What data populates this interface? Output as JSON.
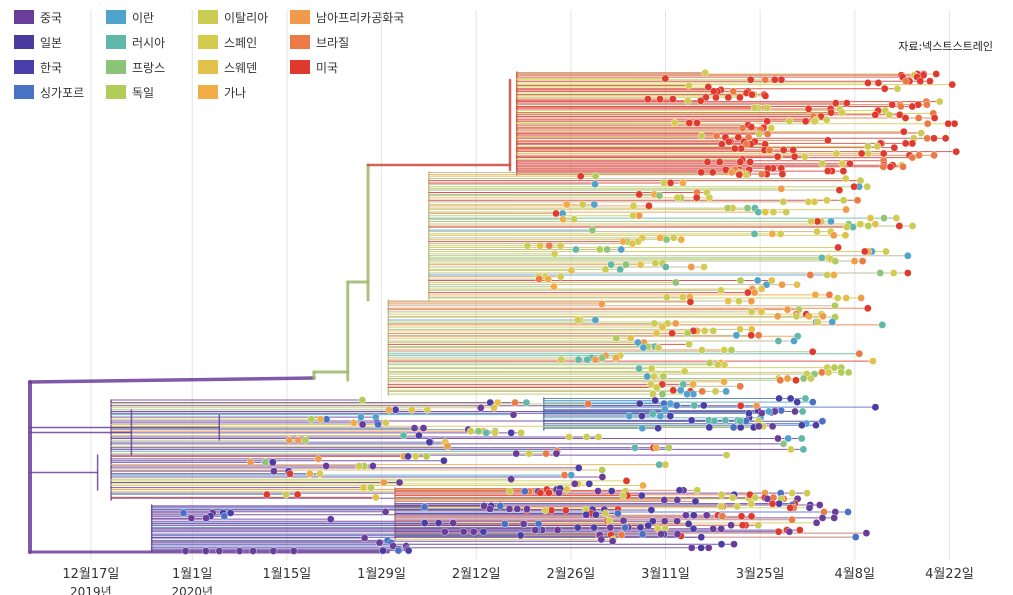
{
  "chart_data": {
    "type": "scatter",
    "title": "",
    "xlabel": "",
    "ylabel": "",
    "source": "자료:넥스트스트레인",
    "grid": "vertical",
    "legend_position": "top-left",
    "x_ticks": [
      {
        "label": "12월17일",
        "sub": "2019년",
        "date": "2019-12-17"
      },
      {
        "label": "1월1일",
        "sub": "2020년",
        "date": "2020-01-01"
      },
      {
        "label": "1월15일",
        "sub": "",
        "date": "2020-01-15"
      },
      {
        "label": "1월29일",
        "sub": "",
        "date": "2020-01-29"
      },
      {
        "label": "2월12일",
        "sub": "",
        "date": "2020-02-12"
      },
      {
        "label": "2월26일",
        "sub": "",
        "date": "2020-02-26"
      },
      {
        "label": "3월11일",
        "sub": "",
        "date": "2020-03-11"
      },
      {
        "label": "3월25일",
        "sub": "",
        "date": "2020-03-25"
      },
      {
        "label": "4월8일",
        "sub": "",
        "date": "2020-04-08"
      },
      {
        "label": "4월22일",
        "sub": "",
        "date": "2020-04-22"
      }
    ],
    "xlim": [
      "2019-12-08",
      "2020-04-28"
    ],
    "series": [
      {
        "name": "중국",
        "color": "#6a3d9a"
      },
      {
        "name": "일본",
        "color": "#4b3aa0"
      },
      {
        "name": "한국",
        "color": "#4a3fa8"
      },
      {
        "name": "싱가포르",
        "color": "#4a72c4"
      },
      {
        "name": "이란",
        "color": "#4fa3cc"
      },
      {
        "name": "러시아",
        "color": "#5fb8a8"
      },
      {
        "name": "프랑스",
        "color": "#8cc47a"
      },
      {
        "name": "독일",
        "color": "#b2cc5a"
      },
      {
        "name": "이탈리아",
        "color": "#cccc55"
      },
      {
        "name": "스페인",
        "color": "#d4cc50"
      },
      {
        "name": "스웨덴",
        "color": "#e2c24a"
      },
      {
        "name": "가나",
        "color": "#f0ac45"
      },
      {
        "name": "남아프리카공화국",
        "color": "#f09a4a"
      },
      {
        "name": "브라질",
        "color": "#ec7a45"
      },
      {
        "name": "미국",
        "color": "#e0392e"
      }
    ]
  }
}
